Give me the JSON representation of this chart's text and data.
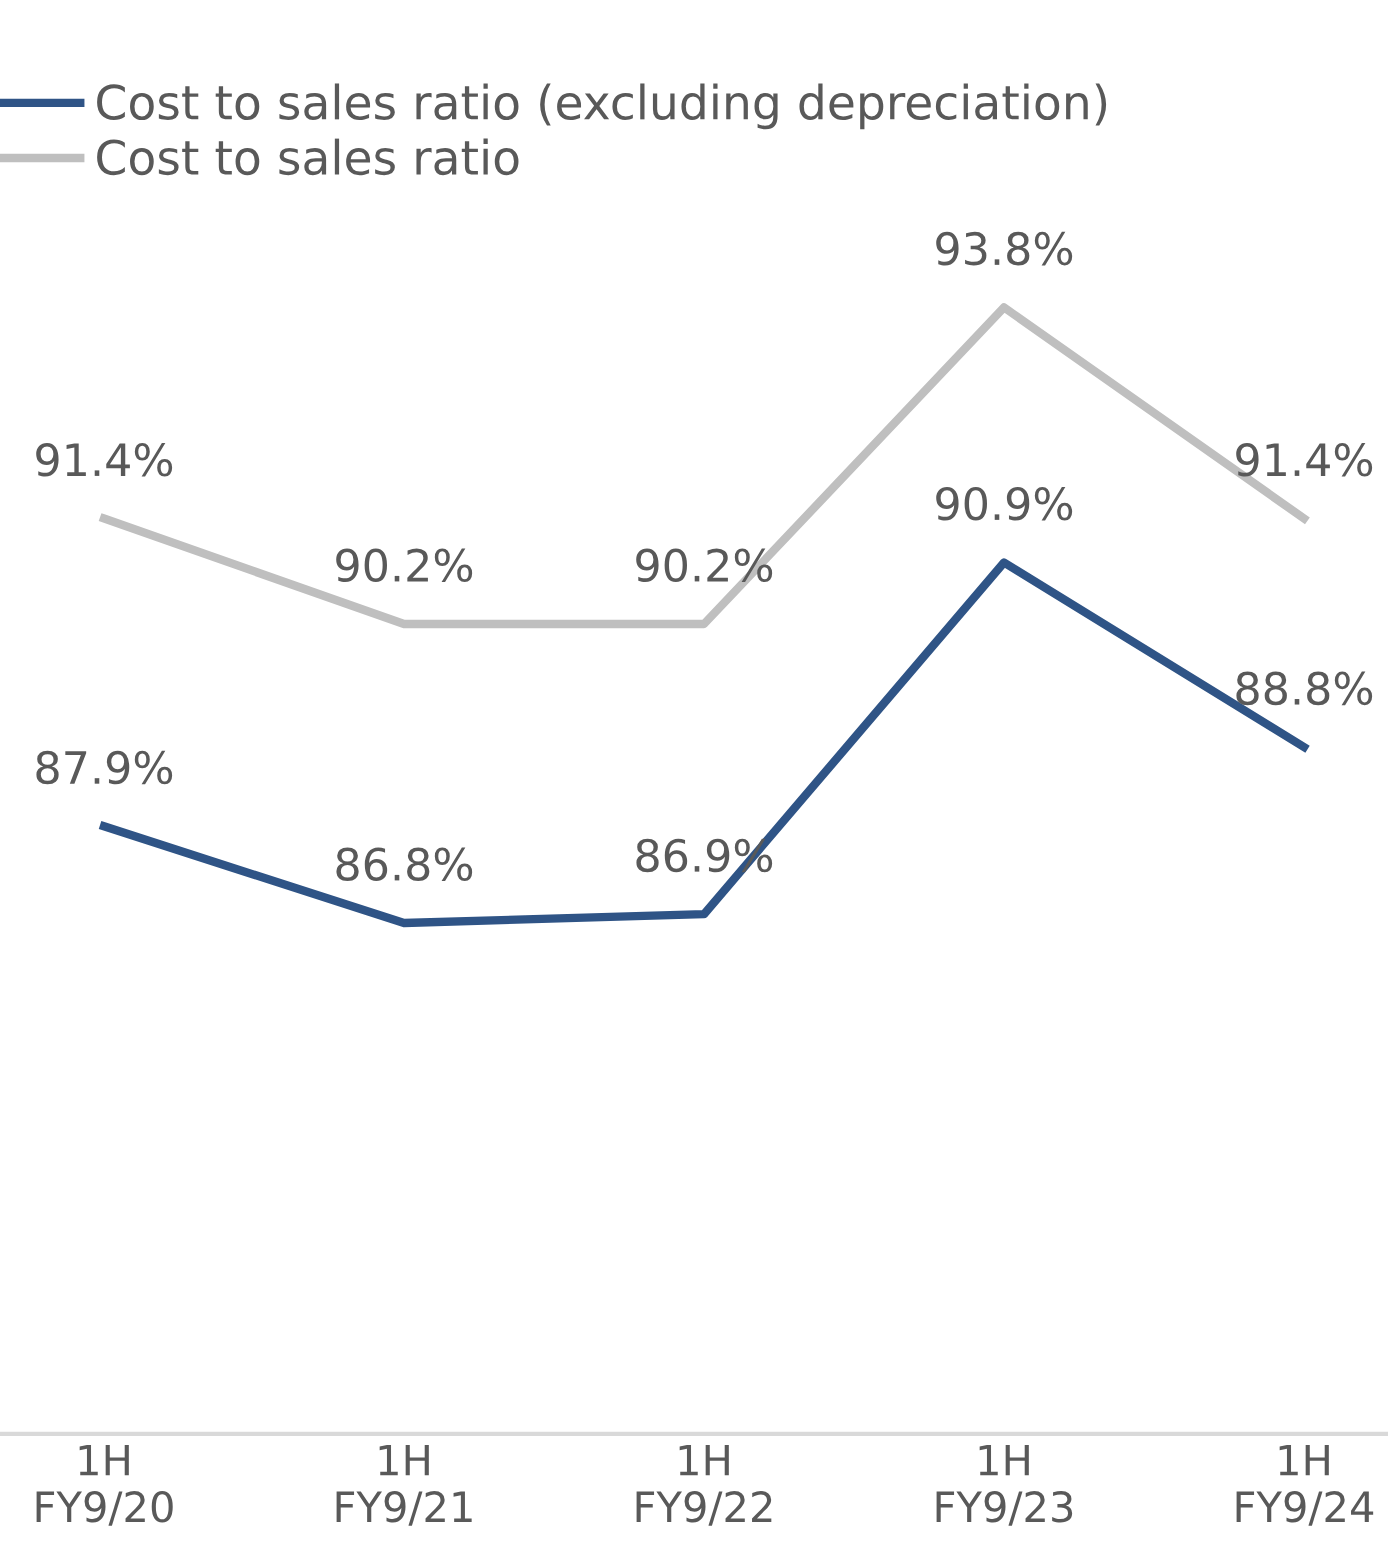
{
  "chart_data": {
    "type": "line",
    "categories": [
      "1H\nFY9/20",
      "1H\nFY9/21",
      "1H\nFY9/22",
      "1H\nFY9/23",
      "1H\nFY9/24"
    ],
    "series": [
      {
        "name": "Cost to sales ratio (excluding depreciation)",
        "color": "#2f5486",
        "values": [
          87.9,
          86.8,
          86.9,
          90.9,
          88.8
        ],
        "value_labels": [
          "87.9%",
          "86.8%",
          "86.9%",
          "90.9%",
          "88.8%"
        ]
      },
      {
        "name": "Cost to sales ratio",
        "color": "#bfbfbf",
        "values": [
          91.4,
          90.2,
          90.2,
          93.8,
          91.4
        ],
        "value_labels": [
          "91.4%",
          "90.2%",
          "90.2%",
          "93.8%",
          "91.4%"
        ]
      }
    ],
    "tick_labels": "x",
    "legend": "top left",
    "marker": "none",
    "line_style": "solid",
    "grid": false
  }
}
